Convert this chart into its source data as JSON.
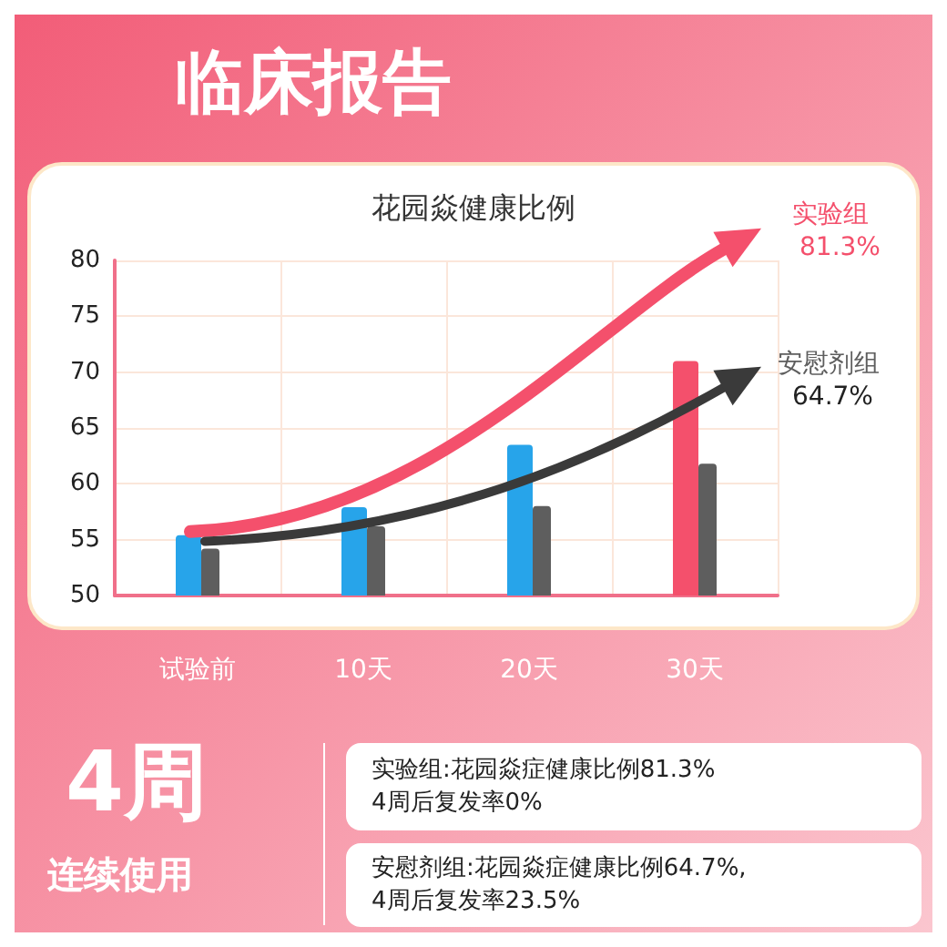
{
  "chart_data": {
    "type": "bar",
    "title": "临床报告",
    "subtitle": "花园焱健康比例",
    "categories": [
      "试验前",
      "10天",
      "20天",
      "30天"
    ],
    "series": [
      {
        "name": "实验组",
        "color": "#f4506c",
        "colors": [
          "#27a4ea",
          "#27a4ea",
          "#27a4ea",
          "#f4506c"
        ],
        "values": [
          55.4,
          57.9,
          63.5,
          71.0
        ]
      },
      {
        "name": "安慰剂组",
        "color": "#5e5e5e",
        "values": [
          54.2,
          56.2,
          58.0,
          61.8
        ]
      }
    ],
    "ylim": [
      50,
      80
    ],
    "yticks": [
      50,
      55,
      60,
      65,
      70,
      75,
      80
    ],
    "grid": true,
    "legend": false,
    "annotations": [
      "81.3%",
      "64.7%",
      "4周",
      "连续使用",
      "实验组:花园焱症健康比例81.3%\n4周后复发率0%",
      "安慰剂组:花园焱症健康比例64.7%,\n4周后复发率23.5%"
    ]
  }
}
